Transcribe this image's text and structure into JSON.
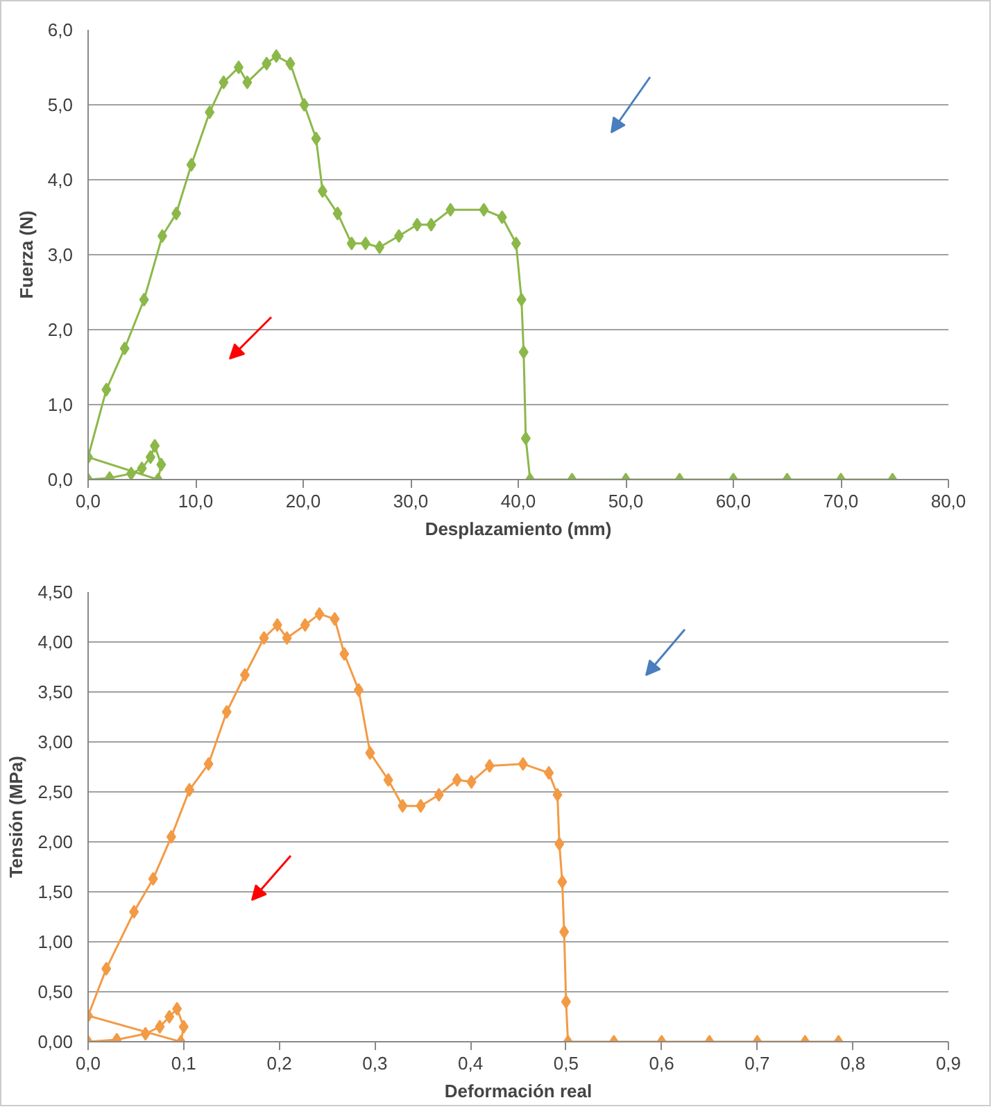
{
  "chart_data": [
    {
      "type": "line",
      "xlabel": "Desplazamiento (mm)",
      "ylabel": "Fuerza (N)",
      "marker": "diamond",
      "grid": "y",
      "xlim": [
        0,
        80
      ],
      "ylim": [
        0,
        6
      ],
      "xticks": [
        {
          "value": 0,
          "label": "0,0"
        },
        {
          "value": 10,
          "label": "10,0"
        },
        {
          "value": 20,
          "label": "20,0"
        },
        {
          "value": 30,
          "label": "30,0"
        },
        {
          "value": 40,
          "label": "40,0"
        },
        {
          "value": 50,
          "label": "50,0"
        },
        {
          "value": 60,
          "label": "60,0"
        },
        {
          "value": 70,
          "label": "70,0"
        },
        {
          "value": 80,
          "label": "80,0"
        }
      ],
      "yticks": [
        {
          "value": 0,
          "label": "0,0"
        },
        {
          "value": 1,
          "label": "1,0"
        },
        {
          "value": 2,
          "label": "2,0"
        },
        {
          "value": 3,
          "label": "3,0"
        },
        {
          "value": 4,
          "label": "4,0"
        },
        {
          "value": 5,
          "label": "5,0"
        },
        {
          "value": 6,
          "label": "6,0"
        }
      ],
      "series": [
        {
          "color": "#8cb84a",
          "x": [
            0,
            2,
            4,
            5,
            5.8,
            6.2,
            6.8,
            6.5,
            0,
            1.7,
            3.4,
            5.2,
            6.9,
            8.2,
            9.6,
            11.3,
            12.6,
            14.0,
            14.8,
            16.6,
            17.5,
            18.8,
            20.1,
            21.2,
            21.8,
            23.2,
            24.5,
            25.8,
            27.1,
            28.9,
            30.6,
            31.9,
            33.7,
            36.8,
            38.5,
            39.8,
            40.3,
            40.5,
            40.7,
            41.1,
            45,
            50,
            55,
            60,
            65,
            70,
            74.8
          ],
          "values": [
            0,
            0.02,
            0.08,
            0.15,
            0.3,
            0.45,
            0.2,
            0,
            0.3,
            1.2,
            1.75,
            2.4,
            3.25,
            3.55,
            4.2,
            4.9,
            5.3,
            5.5,
            5.3,
            5.55,
            5.65,
            5.55,
            5.0,
            4.55,
            3.85,
            3.55,
            3.15,
            3.15,
            3.1,
            3.25,
            3.4,
            3.4,
            3.6,
            3.6,
            3.5,
            3.15,
            2.4,
            1.7,
            0.55,
            0,
            0,
            0,
            0,
            0,
            0,
            0,
            0
          ]
        }
      ]
    },
    {
      "type": "line",
      "xlabel": "Deformación real",
      "ylabel": "Tensión (MPa)",
      "marker": "diamond",
      "grid": "y",
      "xlim": [
        0,
        0.9
      ],
      "ylim": [
        0,
        4.5
      ],
      "xticks": [
        {
          "value": 0,
          "label": "0,0"
        },
        {
          "value": 0.1,
          "label": "0,1"
        },
        {
          "value": 0.2,
          "label": "0,2"
        },
        {
          "value": 0.3,
          "label": "0,3"
        },
        {
          "value": 0.4,
          "label": "0,4"
        },
        {
          "value": 0.5,
          "label": "0,5"
        },
        {
          "value": 0.6,
          "label": "0,6"
        },
        {
          "value": 0.7,
          "label": "0,7"
        },
        {
          "value": 0.8,
          "label": "0,8"
        },
        {
          "value": 0.9,
          "label": "0,9"
        }
      ],
      "yticks": [
        {
          "value": 0,
          "label": "0,00"
        },
        {
          "value": 0.5,
          "label": "0,50"
        },
        {
          "value": 1,
          "label": "1,00"
        },
        {
          "value": 1.5,
          "label": "1,50"
        },
        {
          "value": 2,
          "label": "2,00"
        },
        {
          "value": 2.5,
          "label": "2,50"
        },
        {
          "value": 3,
          "label": "3,00"
        },
        {
          "value": 3.5,
          "label": "3,50"
        },
        {
          "value": 4,
          "label": "4,00"
        },
        {
          "value": 4.5,
          "label": "4,50"
        }
      ],
      "series": [
        {
          "color": "#f39a45",
          "x": [
            0,
            0.03,
            0.06,
            0.075,
            0.085,
            0.093,
            0.1,
            0.097,
            0,
            0.019,
            0.048,
            0.068,
            0.087,
            0.106,
            0.126,
            0.145,
            0.164,
            0.184,
            0.198,
            0.208,
            0.227,
            0.242,
            0.258,
            0.268,
            0.283,
            0.295,
            0.314,
            0.329,
            0.348,
            0.367,
            0.386,
            0.401,
            0.42,
            0.455,
            0.482,
            0.491,
            0.493,
            0.496,
            0.498,
            0.5,
            0.502,
            0.55,
            0.6,
            0.65,
            0.7,
            0.75,
            0.785
          ],
          "values": [
            0,
            0.02,
            0.08,
            0.15,
            0.25,
            0.33,
            0.15,
            0,
            0.26,
            0.73,
            1.3,
            1.63,
            2.05,
            2.52,
            2.78,
            3.3,
            3.67,
            4.04,
            4.17,
            4.04,
            4.17,
            4.28,
            4.23,
            3.88,
            3.52,
            2.89,
            2.62,
            2.36,
            2.36,
            2.47,
            2.62,
            2.6,
            2.76,
            2.78,
            2.69,
            2.47,
            1.98,
            1.6,
            1.1,
            0.4,
            0,
            0,
            0,
            0,
            0,
            0,
            0
          ]
        }
      ]
    }
  ]
}
